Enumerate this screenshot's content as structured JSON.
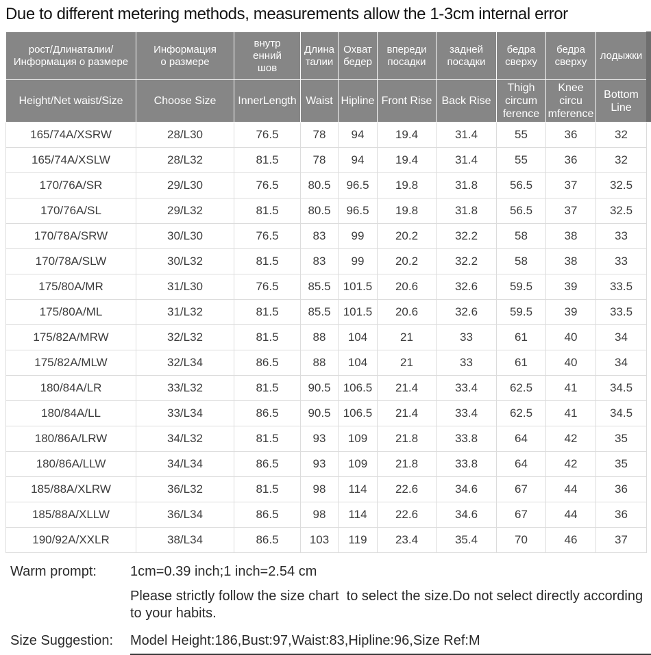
{
  "title": "Due to different metering methods, measurements allow the 1-3cm internal error",
  "table": {
    "columns": [
      {
        "ru": "рост/Длинаталии/\nИнформация о размере",
        "en": "Height/Net waist/Size"
      },
      {
        "ru": "Информация\nо размере",
        "en": "Choose Size"
      },
      {
        "ru": "внутр\nенний\nшов",
        "en": "InnerLength"
      },
      {
        "ru": "Длина\nталии",
        "en": "Waist"
      },
      {
        "ru": "Охват\nбедер",
        "en": "Hipline"
      },
      {
        "ru": "впереди\nпосадки",
        "en": "Front Rise"
      },
      {
        "ru": "задней\nпосадки",
        "en": "Back Rise"
      },
      {
        "ru": "бедра\nсверху",
        "en": "Thigh\ncircum\nference"
      },
      {
        "ru": "бедра\nсверху",
        "en": "Knee\ncircu\nmference"
      },
      {
        "ru": "лодыжки",
        "en": "Bottom\nLine"
      }
    ],
    "rows": [
      [
        "165/74A/XSRW",
        "28/L30",
        "76.5",
        "78",
        "94",
        "19.4",
        "31.4",
        "55",
        "36",
        "32"
      ],
      [
        "165/74A/XSLW",
        "28/L32",
        "81.5",
        "78",
        "94",
        "19.4",
        "31.4",
        "55",
        "36",
        "32"
      ],
      [
        "170/76A/SR",
        "29/L30",
        "76.5",
        "80.5",
        "96.5",
        "19.8",
        "31.8",
        "56.5",
        "37",
        "32.5"
      ],
      [
        "170/76A/SL",
        "29/L32",
        "81.5",
        "80.5",
        "96.5",
        "19.8",
        "31.8",
        "56.5",
        "37",
        "32.5"
      ],
      [
        "170/78A/SRW",
        "30/L30",
        "76.5",
        "83",
        "99",
        "20.2",
        "32.2",
        "58",
        "38",
        "33"
      ],
      [
        "170/78A/SLW",
        "30/L32",
        "81.5",
        "83",
        "99",
        "20.2",
        "32.2",
        "58",
        "38",
        "33"
      ],
      [
        "175/80A/MR",
        "31/L30",
        "76.5",
        "85.5",
        "101.5",
        "20.6",
        "32.6",
        "59.5",
        "39",
        "33.5"
      ],
      [
        "175/80A/ML",
        "31/L32",
        "81.5",
        "85.5",
        "101.5",
        "20.6",
        "32.6",
        "59.5",
        "39",
        "33.5"
      ],
      [
        "175/82A/MRW",
        "32/L32",
        "81.5",
        "88",
        "104",
        "21",
        "33",
        "61",
        "40",
        "34"
      ],
      [
        "175/82A/MLW",
        "32/L34",
        "86.5",
        "88",
        "104",
        "21",
        "33",
        "61",
        "40",
        "34"
      ],
      [
        "180/84A/LR",
        "33/L32",
        "81.5",
        "90.5",
        "106.5",
        "21.4",
        "33.4",
        "62.5",
        "41",
        "34.5"
      ],
      [
        "180/84A/LL",
        "33/L34",
        "86.5",
        "90.5",
        "106.5",
        "21.4",
        "33.4",
        "62.5",
        "41",
        "34.5"
      ],
      [
        "180/86A/LRW",
        "34/L32",
        "81.5",
        "93",
        "109",
        "21.8",
        "33.8",
        "64",
        "42",
        "35"
      ],
      [
        "180/86A/LLW",
        "34/L34",
        "86.5",
        "93",
        "109",
        "21.8",
        "33.8",
        "64",
        "42",
        "35"
      ],
      [
        "185/88A/XLRW",
        "36/L32",
        "81.5",
        "98",
        "114",
        "22.6",
        "34.6",
        "67",
        "44",
        "36"
      ],
      [
        "185/88A/XLLW",
        "36/L34",
        "86.5",
        "98",
        "114",
        "22.6",
        "34.6",
        "67",
        "44",
        "36"
      ],
      [
        "190/92A/XXLR",
        "38/L34",
        "86.5",
        "103",
        "119",
        "23.4",
        "35.4",
        "70",
        "46",
        "37"
      ]
    ]
  },
  "notes": {
    "warm_prompt_label": "Warm prompt:",
    "warm_prompt_value": "1cm=0.39 inch;1 inch=2.54 cm",
    "warm_prompt_note": "Please strictly follow the size chart  to select the size.Do not select directly according to your habits.",
    "size_suggestion_label": "Size Suggestion:",
    "size_suggestion_value": "Model Height:186,Bust:97,Waist:83,Hipline:96,Size Ref:M"
  },
  "colors": {
    "header_background": "#868686",
    "header_text": "#ffffff",
    "grid_line": "#dcdcdc",
    "body_text": "#3d3d3d",
    "title_text": "#141414",
    "header_edge_strip": "#6e6e6e",
    "underline": "#3a3a3a"
  }
}
